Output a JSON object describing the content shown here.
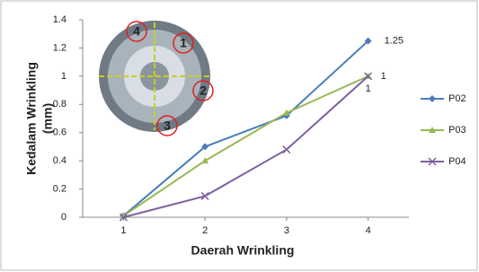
{
  "chart_data": {
    "type": "line",
    "x_label": "Daerah Wrinkling",
    "y_label": [
      "Kedalam Wrinkling",
      "(mm)"
    ],
    "x": [
      1,
      2,
      3,
      4
    ],
    "xlim": [
      0.5,
      4.5
    ],
    "xticks": [
      1,
      2,
      3,
      4
    ],
    "ylim": [
      0,
      1.4
    ],
    "yticks": [
      0,
      0.2,
      0.4,
      0.6,
      0.8,
      1,
      1.2,
      1.4
    ],
    "grid": false,
    "legend": "right",
    "series": [
      {
        "name": "P02",
        "color": "#4a7ebb",
        "marker": "diamond",
        "values": [
          0.01,
          0.5,
          0.72,
          1.25
        ],
        "value_labels": [
          null,
          null,
          null,
          "1.25"
        ]
      },
      {
        "name": "P03",
        "color": "#98b954",
        "marker": "triangle",
        "values": [
          0.01,
          0.4,
          0.74,
          1.0
        ],
        "value_labels": [
          null,
          null,
          null,
          "1"
        ]
      },
      {
        "name": "P04",
        "color": "#7d60a0",
        "marker": "x",
        "values": [
          0,
          0.15,
          0.48,
          1.0
        ],
        "value_labels": [
          null,
          null,
          null,
          "1"
        ]
      }
    ],
    "annotations": [
      "1",
      "2",
      "3",
      "4"
    ]
  }
}
